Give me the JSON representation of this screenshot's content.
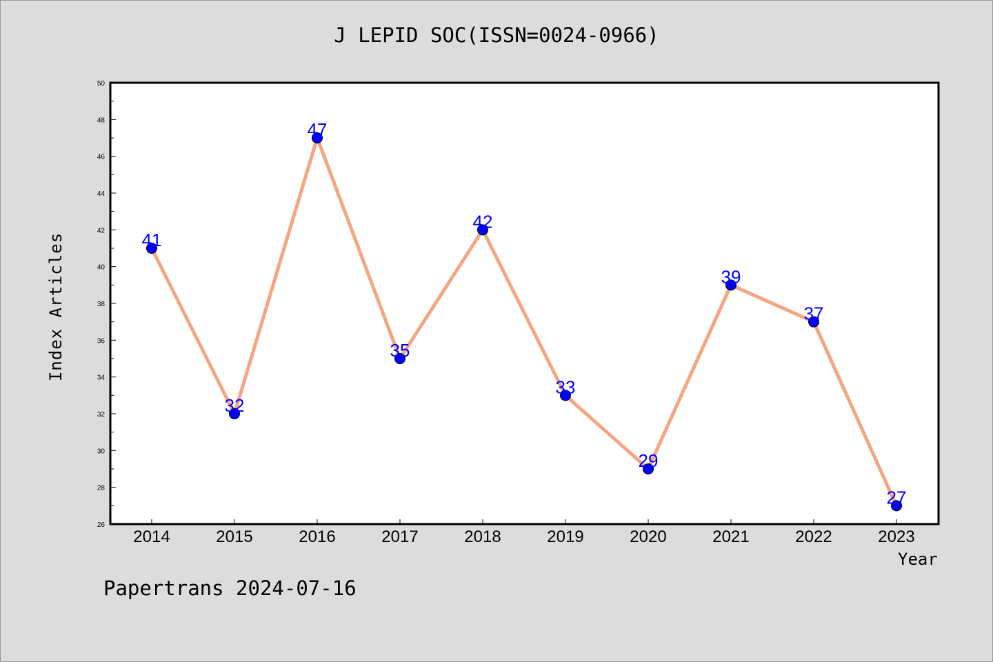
{
  "chart_data": {
    "type": "line",
    "title": "J LEPID SOC(ISSN=0024-0966)",
    "xlabel": "Year",
    "ylabel": "Index Articles",
    "x": [
      "2014",
      "2015",
      "2016",
      "2017",
      "2018",
      "2019",
      "2020",
      "2021",
      "2022",
      "2023"
    ],
    "series": [
      {
        "values": [
          41,
          32,
          47,
          35,
          42,
          33,
          29,
          39,
          37,
          27
        ]
      }
    ],
    "ylim": [
      26,
      50
    ],
    "yticks": [
      26,
      28,
      30,
      32,
      34,
      36,
      38,
      40,
      42,
      44,
      46,
      48,
      50
    ],
    "line_color": "#f4a582",
    "marker_color": "#0000ff",
    "label_color": "#0000ff",
    "grid": false
  },
  "footer": "Papertrans 2024-07-16"
}
